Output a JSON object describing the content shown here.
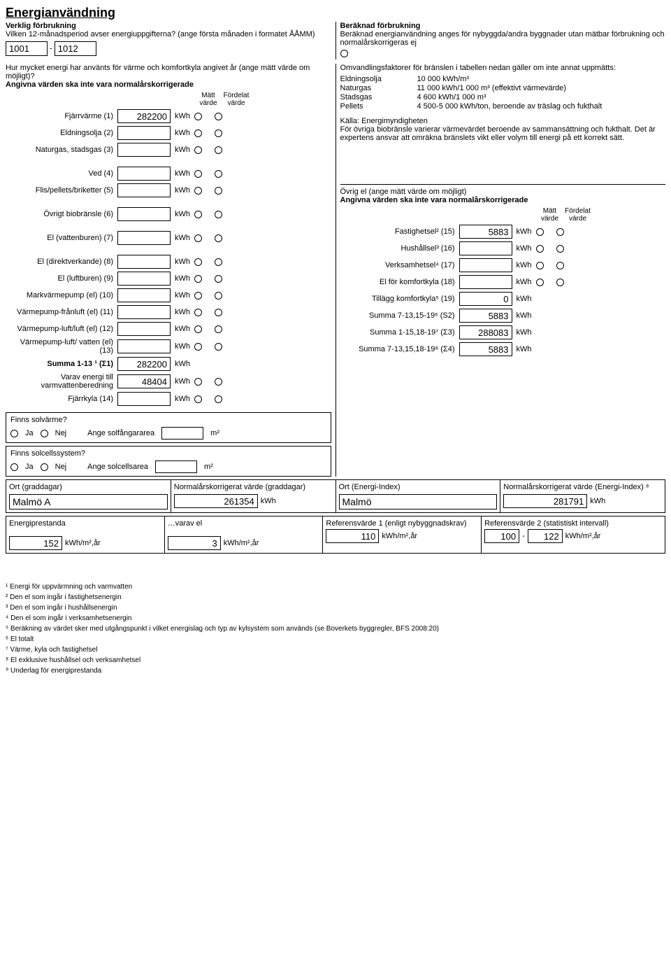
{
  "title": "Energianvändning",
  "left_header": {
    "l1": "Verklig förbrukning",
    "l2": "Vilken 12-månadsperiod avser energiuppgifterna? (ange första månaden i formatet ÅÅMM)",
    "period_from": "1001",
    "period_to": "1012",
    "q1": "Hur mycket energi har använts för värme och komfortkyla angivet år (ange mätt värde om möjligt)?",
    "q2": "Angivna värden ska inte vara normalårskorrigerade",
    "col_matt": "Mätt värde",
    "col_ford": "Fördelat värde"
  },
  "right_header": {
    "l1": "Beräknad förbrukning",
    "l2": "Beräknad energianvändning anges för nybyggda/andra byggnader utan mätbar förbrukning och normalårskorrigeras ej",
    "chk_label": ""
  },
  "rows_left": [
    {
      "label": "Fjärrvärme (1)",
      "val": "282200",
      "unit": "kWh"
    },
    {
      "label": "Eldningsolja (2)",
      "val": "",
      "unit": "kWh"
    },
    {
      "label": "Naturgas, stadsgas (3)",
      "val": "",
      "unit": "kWh"
    },
    {
      "label": "Ved (4)",
      "val": "",
      "unit": "kWh"
    },
    {
      "label": "Flis/pellets/briketter (5)",
      "val": "",
      "unit": "kWh"
    },
    {
      "label": "Övrigt biobränsle (6)",
      "val": "",
      "unit": "kWh"
    },
    {
      "label": "El (vattenburen) (7)",
      "val": "",
      "unit": "kWh"
    },
    {
      "label": "El (direktverkande) (8)",
      "val": "",
      "unit": "kWh"
    },
    {
      "label": "El (luftburen) (9)",
      "val": "",
      "unit": "kWh"
    },
    {
      "label": "Markvärmepump (el) (10)",
      "val": "",
      "unit": "kWh"
    },
    {
      "label": "Värmepump-frånluft (el) (11)",
      "val": "",
      "unit": "kWh"
    },
    {
      "label": "Värmepump-luft/luft (el) (12)",
      "val": "",
      "unit": "kWh"
    },
    {
      "label": "Värmepump-luft/ vatten (el) (13)",
      "val": "",
      "unit": "kWh"
    }
  ],
  "summa1": {
    "label": "Summa 1-13 ¹ (Σ1)",
    "val": "282200",
    "unit": "kWh"
  },
  "varav": {
    "label": "Varav energi till varmvattenberedning",
    "val": "48404",
    "unit": "kWh"
  },
  "fjarrkyla": {
    "label": "Fjärrkyla (14)",
    "val": "",
    "unit": "kWh"
  },
  "conv": {
    "intro": "Omvandlingsfaktorer för bränslen i tabellen nedan gäller om inte annat uppmätts:",
    "rows": [
      {
        "k": "Eldningsolja",
        "v": "10 000 kWh/m³"
      },
      {
        "k": "Naturgas",
        "v": "11 000 kWh/1 000 m³ (effektivt värmevärde)"
      },
      {
        "k": "Stadsgas",
        "v": "4 600 kWh/1 000 m³"
      },
      {
        "k": "Pellets",
        "v": "4 500-5 000 kWh/ton, beroende av träslag och fukthalt"
      }
    ],
    "src": "Källa: Energimyndigheten",
    "note": "För övriga biobränsle varierar värmevärdet beroende av sammansättning och fukthalt. Det är expertens ansvar att omräkna bränslets vikt eller volym till energi på ett korrekt sätt."
  },
  "ovrig_el": {
    "title": "Övrig el (ange mätt värde om möjligt)",
    "sub": "Angivna värden ska inte vara normalårskorrigerade",
    "col_matt": "Mätt värde",
    "col_ford": "Fördelat värde",
    "rows": [
      {
        "label": "Fastighetsel² (15)",
        "val": "5883",
        "unit": "kWh",
        "radios": true
      },
      {
        "label": "Hushållsel³ (16)",
        "val": "",
        "unit": "kWh",
        "radios": true
      },
      {
        "label": "Verksamhetsel⁴ (17)",
        "val": "",
        "unit": "kWh",
        "radios": true
      },
      {
        "label": "El för komfortkyla (18)",
        "val": "",
        "unit": "kWh",
        "radios": true
      },
      {
        "label": "Tillägg komfortkyla⁵ (19)",
        "val": "0",
        "unit": "kWh",
        "radios": false
      },
      {
        "label": "Summa 7-13,15-19⁶ (S2)",
        "val": "5883",
        "unit": "kWh",
        "radios": false
      },
      {
        "label": "Summa 1-15,18-19⁷ (Σ3)",
        "val": "288083",
        "unit": "kWh",
        "radios": false
      },
      {
        "label": "Summa 7-13,15,18-19⁸ (Σ4)",
        "val": "5883",
        "unit": "kWh",
        "radios": false
      }
    ]
  },
  "solar": {
    "q1": "Finns solvärme?",
    "a1_yes": "Ja",
    "a1_no": "Nej",
    "area1_label": "Ange solfångararea",
    "area1_unit": "m²",
    "q2": "Finns solcellssystem?",
    "a2_yes": "Ja",
    "a2_no": "Nej",
    "area2_label": "Ange solcellsarea",
    "area2_unit": "m²"
  },
  "ort_row": {
    "c1_label": "Ort (graddagar)",
    "c1_val": "Malmö A",
    "c2_label": "Normalårskorrigerat värde (graddagar)",
    "c2_val": "261354",
    "c2_unit": "kWh",
    "c3_label": "Ort (Energi-Index)",
    "c3_val": "Malmö",
    "c4_label": "Normalårskorrigerat värde (Energi-Index) ⁸",
    "c4_val": "281791",
    "c4_unit": "kWh"
  },
  "perf_row": {
    "c1_label": "Energiprestanda",
    "c1_val": "152",
    "c1_unit": "kWh/m²,år",
    "c2_label": "…varav el",
    "c2_val": "3",
    "c2_unit": "kWh/m²,år",
    "c3_label": "Referensvärde 1 (enligt nybyggnadskrav)",
    "c3_val": "110",
    "c3_unit": "kWh/m²,år",
    "c4_label": "Referensvärde 2 (statistiskt intervall)",
    "c4_from": "100",
    "c4_to": "122",
    "c4_unit": "kWh/m²,år"
  },
  "footnotes": [
    "¹ Energi för uppvärmning och varmvatten",
    "² Den el som ingår i fastighetsenergin",
    "³ Den el som ingår i hushållsenergin",
    "⁴ Den el som ingår i verksamhetsenergin",
    "⁵ Beräkning av värdet sker med utgångspunkt i vilket energislag och typ av kylsystem som används (se Boverkets byggregler, BFS 2008:20)",
    "⁶ El totalt",
    "⁷ Värme, kyla och fastighetsel",
    "⁸ El exklusive hushållsel och verksamhetsel",
    "⁹ Underlag för energiprestanda"
  ]
}
